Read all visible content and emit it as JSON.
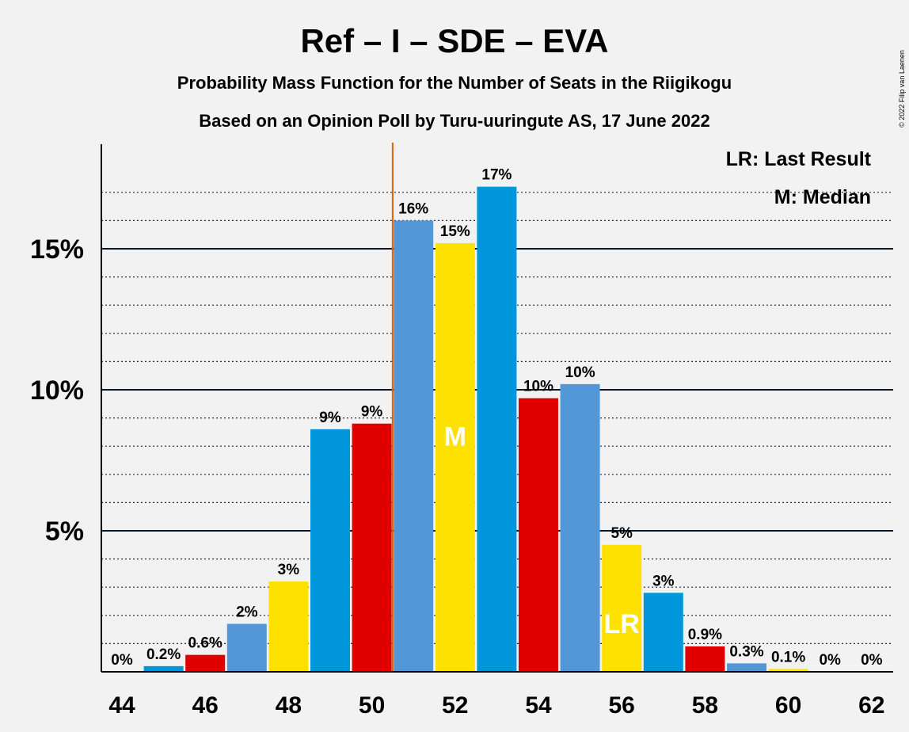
{
  "chart_data": {
    "type": "bar",
    "title": "Ref – I – SDE – EVA",
    "subtitle1": "Probability Mass Function for the Number of Seats in the Riigikogu",
    "subtitle2": "Based on an Opinion Poll by Turu-uuringute AS, 17 June 2022",
    "credit": "© 2022 Filip van Laenen",
    "x": [
      44,
      45,
      46,
      47,
      48,
      49,
      50,
      51,
      52,
      53,
      54,
      55,
      56,
      57,
      58,
      59,
      60,
      61,
      62
    ],
    "values": [
      0,
      0.2,
      0.6,
      1.7,
      3.2,
      8.6,
      8.8,
      16.0,
      15.2,
      17.2,
      9.7,
      10.2,
      4.5,
      2.8,
      0.9,
      0.3,
      0.1,
      0,
      0
    ],
    "value_labels": [
      "0%",
      "0.2%",
      "0.6%",
      "2%",
      "3%",
      "9%",
      "9%",
      "16%",
      "15%",
      "17%",
      "10%",
      "10%",
      "5%",
      "3%",
      "0.9%",
      "0.3%",
      "0.1%",
      "0%",
      "0%"
    ],
    "colors": [
      "#0096DC",
      "#0096DC",
      "#E10000",
      "#5298D9",
      "#FFE100",
      "#0096DC",
      "#E10000",
      "#5298D9",
      "#FFE100",
      "#0096DC",
      "#E10000",
      "#5298D9",
      "#FFE100",
      "#0096DC",
      "#E10000",
      "#5298D9",
      "#FFE100",
      "#0096DC",
      "#E10000"
    ],
    "x_tick_labels": [
      "44",
      "46",
      "48",
      "50",
      "52",
      "54",
      "56",
      "58",
      "60",
      "62"
    ],
    "y_ticks": [
      {
        "value": 5,
        "label": "5%"
      },
      {
        "value": 10,
        "label": "10%"
      },
      {
        "value": 15,
        "label": "15%"
      }
    ],
    "ylim": [
      0,
      18.8
    ],
    "median_seat": 52,
    "median_marker": "M",
    "last_result_seat": 56,
    "last_result_marker": "LR",
    "threshold_line_after": 50.5,
    "threshold_color": "#E06000",
    "legend": {
      "last_result": "LR: Last Result",
      "median": "M: Median"
    }
  }
}
